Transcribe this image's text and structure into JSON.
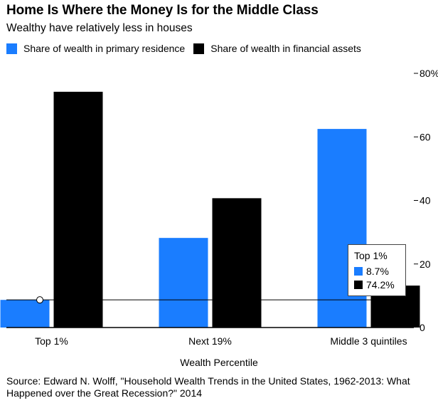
{
  "header": {
    "title": "Home Is Where the Money Is for the Middle Class",
    "subtitle": "Wealthy have relatively less in houses"
  },
  "colors": {
    "residence": "#1a7dff",
    "financial": "#000000",
    "axis": "#000000",
    "grid": "#d9d9d9"
  },
  "chart_data": {
    "type": "bar",
    "categories": [
      "Top 1%",
      "Next 19%",
      "Middle 3 quintiles"
    ],
    "series": [
      {
        "name": "Share of wealth in primary residence",
        "values": [
          8.7,
          28.2,
          62.5
        ],
        "color": "#1a7dff"
      },
      {
        "name": "Share of wealth in financial assets",
        "values": [
          74.2,
          40.7,
          13.2
        ],
        "color": "#000000"
      }
    ],
    "xlabel": "Wealth Percentile",
    "ylabel": "",
    "ylim": [
      0,
      80
    ],
    "yticks": [
      0,
      20,
      40,
      60,
      80
    ],
    "ytick_labels": [
      "0",
      "20",
      "40",
      "60",
      "80%"
    ],
    "y_axis_position": "right",
    "grid": false,
    "legend_position": "top-left",
    "hover": {
      "category": "Top 1%",
      "reference_value": 8.7
    }
  },
  "tooltip": {
    "title": "Top 1%",
    "rows": [
      {
        "label": "8.7%"
      },
      {
        "label": "74.2%"
      }
    ]
  },
  "source": "Source: Edward N. Wolff, \"Household Wealth Trends in the United States, 1962-2013: What Happened over the Great Recession?\" 2014"
}
